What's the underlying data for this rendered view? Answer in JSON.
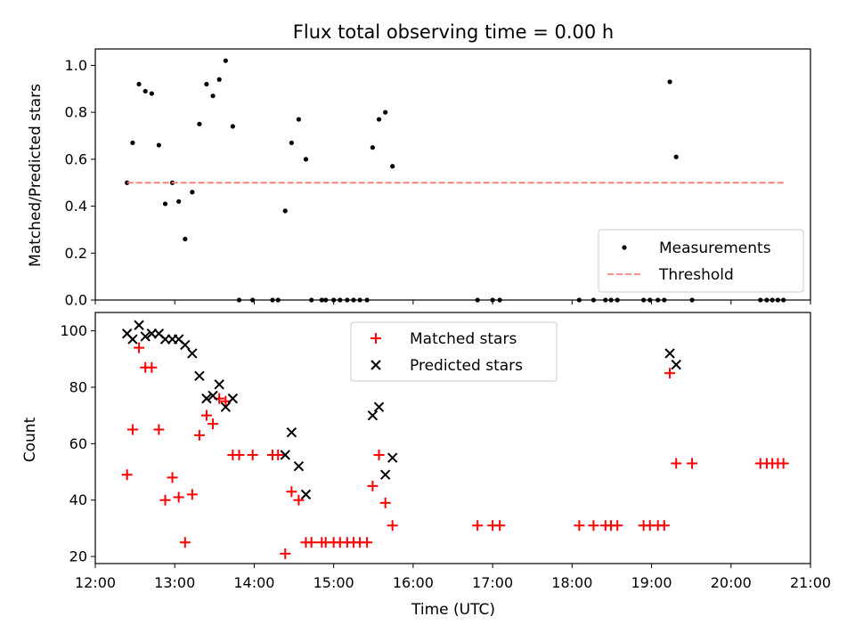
{
  "chart_data": [
    {
      "type": "scatter",
      "title": "Flux total observing time = 0.00 h",
      "ylabel": "Matched/Predicted stars",
      "xlabel": "",
      "xlim": [
        12.0,
        21.0
      ],
      "ylim": [
        0.0,
        1.07
      ],
      "yticks": [
        "0.0",
        "0.2",
        "0.4",
        "0.6",
        "0.8",
        "1.0"
      ],
      "ytick_values": [
        0.0,
        0.2,
        0.4,
        0.6,
        0.8,
        1.0
      ],
      "series": [
        {
          "name": "Measurements",
          "color": "#000000",
          "marker": "dot",
          "points": [
            [
              12.4,
              0.5
            ],
            [
              12.47,
              0.67
            ],
            [
              12.55,
              0.92
            ],
            [
              12.63,
              0.89
            ],
            [
              12.71,
              0.88
            ],
            [
              12.8,
              0.66
            ],
            [
              12.88,
              0.41
            ],
            [
              12.97,
              0.5
            ],
            [
              13.05,
              0.42
            ],
            [
              13.13,
              0.26
            ],
            [
              13.22,
              0.46
            ],
            [
              13.31,
              0.75
            ],
            [
              13.4,
              0.92
            ],
            [
              13.48,
              0.87
            ],
            [
              13.56,
              0.94
            ],
            [
              13.64,
              1.02
            ],
            [
              13.73,
              0.74
            ],
            [
              13.81,
              0.0
            ],
            [
              13.98,
              0.0
            ],
            [
              14.23,
              0.0
            ],
            [
              14.3,
              0.0
            ],
            [
              14.39,
              0.38
            ],
            [
              14.47,
              0.67
            ],
            [
              14.56,
              0.77
            ],
            [
              14.65,
              0.6
            ],
            [
              14.72,
              0.0
            ],
            [
              14.85,
              0.0
            ],
            [
              14.9,
              0.0
            ],
            [
              15.0,
              0.0
            ],
            [
              15.08,
              0.0
            ],
            [
              15.17,
              0.0
            ],
            [
              15.25,
              0.0
            ],
            [
              15.33,
              0.0
            ],
            [
              15.42,
              0.0
            ],
            [
              15.49,
              0.65
            ],
            [
              15.57,
              0.77
            ],
            [
              15.65,
              0.8
            ],
            [
              15.74,
              0.57
            ],
            [
              16.81,
              0.0
            ],
            [
              17.0,
              0.0
            ],
            [
              17.09,
              0.0
            ],
            [
              18.09,
              0.0
            ],
            [
              18.27,
              0.0
            ],
            [
              18.42,
              0.0
            ],
            [
              18.49,
              0.0
            ],
            [
              18.57,
              0.0
            ],
            [
              18.9,
              0.0
            ],
            [
              18.98,
              0.0
            ],
            [
              19.08,
              0.0
            ],
            [
              19.16,
              0.0
            ],
            [
              19.23,
              0.93
            ],
            [
              19.31,
              0.61
            ],
            [
              19.51,
              0.0
            ],
            [
              20.37,
              0.0
            ],
            [
              20.45,
              0.0
            ],
            [
              20.52,
              0.0
            ],
            [
              20.59,
              0.0
            ],
            [
              20.66,
              0.0
            ]
          ]
        },
        {
          "name": "Threshold",
          "color": "#ff7f7f",
          "style": "dashed",
          "points": [
            [
              12.4,
              0.5
            ],
            [
              20.66,
              0.5
            ]
          ]
        }
      ],
      "legend": {
        "location": "lower-right",
        "entries": [
          "Measurements",
          "Threshold"
        ]
      }
    },
    {
      "type": "scatter",
      "title": "",
      "ylabel": "Count",
      "xlabel": "Time (UTC)",
      "xlim": [
        12.0,
        21.0
      ],
      "ylim": [
        17.5,
        106.5
      ],
      "yticks": [
        "20",
        "40",
        "60",
        "80",
        "100"
      ],
      "ytick_values": [
        20,
        40,
        60,
        80,
        100
      ],
      "xticks": [
        "12:00",
        "13:00",
        "14:00",
        "15:00",
        "16:00",
        "17:00",
        "18:00",
        "19:00",
        "20:00",
        "21:00"
      ],
      "xtick_values": [
        12,
        13,
        14,
        15,
        16,
        17,
        18,
        19,
        20,
        21
      ],
      "series": [
        {
          "name": "Matched stars",
          "color": "#ff0000",
          "marker": "plus",
          "points": [
            [
              12.4,
              49
            ],
            [
              12.47,
              65
            ],
            [
              12.55,
              94
            ],
            [
              12.63,
              87
            ],
            [
              12.71,
              87
            ],
            [
              12.8,
              65
            ],
            [
              12.88,
              40
            ],
            [
              12.97,
              48
            ],
            [
              13.05,
              41
            ],
            [
              13.13,
              25
            ],
            [
              13.22,
              42
            ],
            [
              13.31,
              63
            ],
            [
              13.4,
              70
            ],
            [
              13.48,
              67
            ],
            [
              13.56,
              76
            ],
            [
              13.64,
              75
            ],
            [
              13.73,
              56
            ],
            [
              13.81,
              56
            ],
            [
              13.98,
              56
            ],
            [
              14.23,
              56
            ],
            [
              14.3,
              56
            ],
            [
              14.39,
              21
            ],
            [
              14.47,
              43
            ],
            [
              14.56,
              40
            ],
            [
              14.65,
              25
            ],
            [
              14.72,
              25
            ],
            [
              14.85,
              25
            ],
            [
              14.9,
              25
            ],
            [
              15.0,
              25
            ],
            [
              15.08,
              25
            ],
            [
              15.17,
              25
            ],
            [
              15.25,
              25
            ],
            [
              15.33,
              25
            ],
            [
              15.42,
              25
            ],
            [
              15.49,
              45
            ],
            [
              15.57,
              56
            ],
            [
              15.65,
              39
            ],
            [
              15.74,
              31
            ],
            [
              16.81,
              31
            ],
            [
              17.0,
              31
            ],
            [
              17.09,
              31
            ],
            [
              18.09,
              31
            ],
            [
              18.27,
              31
            ],
            [
              18.42,
              31
            ],
            [
              18.49,
              31
            ],
            [
              18.57,
              31
            ],
            [
              18.9,
              31
            ],
            [
              18.98,
              31
            ],
            [
              19.08,
              31
            ],
            [
              19.16,
              31
            ],
            [
              19.23,
              85
            ],
            [
              19.31,
              53
            ],
            [
              19.51,
              53
            ],
            [
              20.37,
              53
            ],
            [
              20.45,
              53
            ],
            [
              20.52,
              53
            ],
            [
              20.59,
              53
            ],
            [
              20.66,
              53
            ]
          ]
        },
        {
          "name": "Predicted stars",
          "color": "#000000",
          "marker": "x",
          "points": [
            [
              12.4,
              99
            ],
            [
              12.47,
              97
            ],
            [
              12.55,
              102
            ],
            [
              12.63,
              98
            ],
            [
              12.71,
              99
            ],
            [
              12.8,
              99
            ],
            [
              12.88,
              97
            ],
            [
              12.97,
              97
            ],
            [
              13.05,
              97
            ],
            [
              13.13,
              95
            ],
            [
              13.22,
              92
            ],
            [
              13.31,
              84
            ],
            [
              13.4,
              76
            ],
            [
              13.48,
              77
            ],
            [
              13.56,
              81
            ],
            [
              13.64,
              73
            ],
            [
              13.73,
              76
            ],
            [
              14.39,
              56
            ],
            [
              14.47,
              64
            ],
            [
              14.56,
              52
            ],
            [
              14.65,
              42
            ],
            [
              15.49,
              70
            ],
            [
              15.57,
              73
            ],
            [
              15.65,
              49
            ],
            [
              15.74,
              55
            ],
            [
              19.23,
              92
            ],
            [
              19.31,
              88
            ]
          ]
        }
      ],
      "legend": {
        "location": "top-center",
        "entries": [
          "Matched stars",
          "Predicted stars"
        ]
      }
    }
  ]
}
